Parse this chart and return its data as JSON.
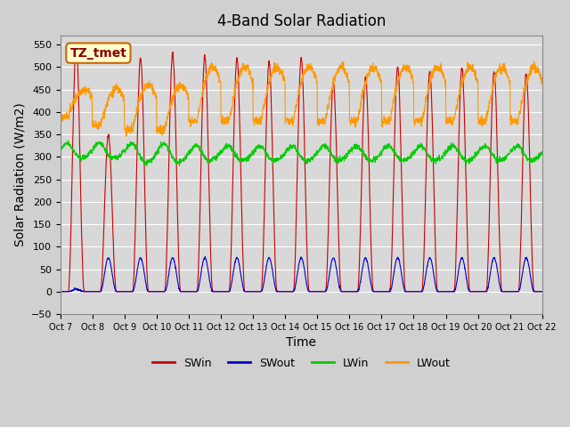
{
  "title": "4-Band Solar Radiation",
  "xlabel": "Time",
  "ylabel": "Solar Radiation (W/m2)",
  "ylim": [
    -50,
    570
  ],
  "xlim": [
    0,
    15
  ],
  "background_color": "#e8e8e8",
  "plot_bg_color": "#d8d8d8",
  "colors": {
    "SWin": "#cc0000",
    "SWout": "#0000cc",
    "LWin": "#00cc00",
    "LWout": "#ff9900"
  },
  "label_box": {
    "text": "TZ_tmet",
    "facecolor": "#ffffcc",
    "edgecolor": "#cc6600",
    "textcolor": "#8b0000"
  },
  "x_ticks": [
    0,
    1,
    2,
    3,
    4,
    5,
    6,
    7,
    8,
    9,
    10,
    11,
    12,
    13,
    14,
    15
  ],
  "x_tick_labels": [
    "Oct 7",
    "Oct 8",
    "Oct 9",
    "Oct 10",
    "Oct 11",
    "Oct 12",
    "Oct 13",
    "Oct 14",
    "Oct 15",
    "Oct 16",
    "Oct 17",
    "Oct 18",
    "Oct 19",
    "Oct 20",
    "Oct 21",
    "Oct 22"
  ],
  "y_ticks": [
    -50,
    0,
    50,
    100,
    150,
    200,
    250,
    300,
    350,
    400,
    450,
    500,
    550
  ],
  "n_days": 15,
  "pts_per_day": 144
}
